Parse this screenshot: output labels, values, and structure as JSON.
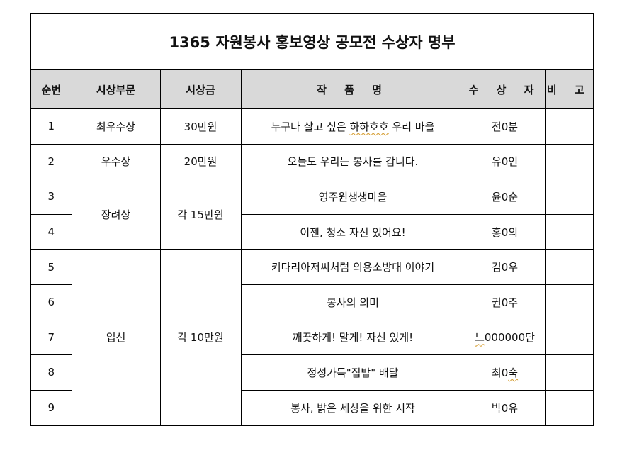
{
  "title": "1365 자원봉사 홍보영상 공모전 수상자 명부",
  "headers": [
    "순번",
    "시상부문",
    "시상금",
    "작 품 명",
    "수 상 자",
    "비 고"
  ],
  "rows": [
    {
      "no": "1",
      "category": "최우수상",
      "prize": "30만원",
      "work_pre": "누구나 살고 싶은 ",
      "work_mark": "하하호호",
      "work_post": " 우리 마을",
      "winner": "전0분",
      "note": ""
    },
    {
      "no": "2",
      "category": "우수상",
      "prize": "20만원",
      "work": "오늘도 우리는 봉사를 갑니다.",
      "winner": "유0인",
      "note": ""
    },
    {
      "no": "3",
      "category": "장려상",
      "prize": "각 15만원",
      "work": "영주원생생마을",
      "winner": "윤0순",
      "note": ""
    },
    {
      "no": "4",
      "work": "이젠, 청소 자신 있어요!",
      "winner": "홍0의",
      "note": ""
    },
    {
      "no": "5",
      "category": "입선",
      "prize": "각 10만원",
      "work": "키다리아저씨처럼 의용소방대 이야기",
      "winner": "김0우",
      "note": ""
    },
    {
      "no": "6",
      "work": "봉사의 의미",
      "winner": "권0주",
      "note": ""
    },
    {
      "no": "7",
      "work": "깨끗하게! 말게! 자신 있게!",
      "winner_mark": "느",
      "winner_post": "000000단",
      "note": ""
    },
    {
      "no": "8",
      "work": "정성가득\"집밥\" 배달",
      "winner_pre": "최0",
      "winner_mark": "숙",
      "note": ""
    },
    {
      "no": "9",
      "work": "봉사, 밝은 세상을 위한 시작",
      "winner": "박0유",
      "note": ""
    }
  ]
}
